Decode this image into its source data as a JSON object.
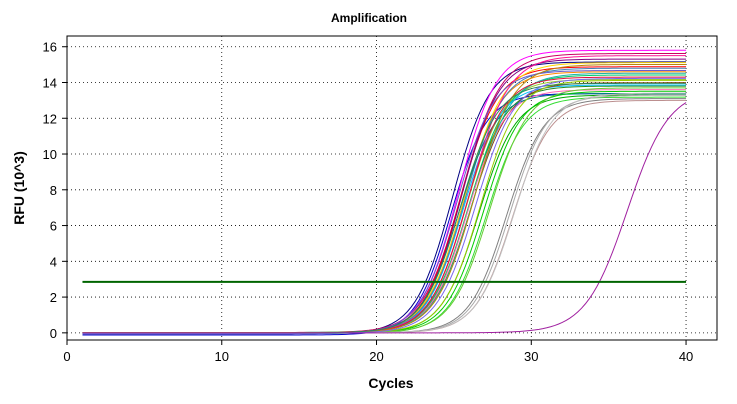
{
  "chart_data": {
    "type": "line",
    "title": "Amplification",
    "xlabel": "Cycles",
    "ylabel": "RFU (10^3)",
    "xlim": [
      0,
      42
    ],
    "ylim": [
      -0.4,
      16.6
    ],
    "x_ticks": [
      0,
      10,
      20,
      30,
      40
    ],
    "y_ticks": [
      0,
      2,
      4,
      6,
      8,
      10,
      12,
      14,
      16
    ],
    "grid": "dotted",
    "legend": "none",
    "threshold": {
      "y": 2.85,
      "color": "#006400"
    },
    "x_range": [
      1,
      40
    ],
    "curve_model": "logistic: baseline + plateau / (1 + exp(-(cycle - midpoint) / slope))",
    "series": [
      {
        "plateau": 13.5,
        "midpoint": 24.8,
        "slope": 1.15,
        "baseline": -0.12,
        "color": "#0000cc"
      },
      {
        "plateau": 15.2,
        "midpoint": 24.9,
        "slope": 1.2,
        "baseline": -0.05,
        "color": "#000080"
      },
      {
        "plateau": 15.8,
        "midpoint": 25.3,
        "slope": 1.2,
        "baseline": 0.0,
        "color": "#ff00ff"
      },
      {
        "plateau": 15.6,
        "midpoint": 25.5,
        "slope": 1.25,
        "baseline": 0.02,
        "color": "#cc0066"
      },
      {
        "plateau": 14.9,
        "midpoint": 25.4,
        "slope": 1.2,
        "baseline": -0.02,
        "color": "#ff0000"
      },
      {
        "plateau": 14.6,
        "midpoint": 25.6,
        "slope": 1.2,
        "baseline": 0.0,
        "color": "#ff8c00"
      },
      {
        "plateau": 15.1,
        "midpoint": 25.7,
        "slope": 1.25,
        "baseline": 0.01,
        "color": "#ffd700"
      },
      {
        "plateau": 14.2,
        "midpoint": 25.8,
        "slope": 1.2,
        "baseline": -0.03,
        "color": "#9acd32"
      },
      {
        "plateau": 13.8,
        "midpoint": 25.9,
        "slope": 1.2,
        "baseline": 0.0,
        "color": "#228b22"
      },
      {
        "plateau": 14.4,
        "midpoint": 26.0,
        "slope": 1.25,
        "baseline": 0.02,
        "color": "#00cc66"
      },
      {
        "plateau": 13.9,
        "midpoint": 25.6,
        "slope": 1.2,
        "baseline": -0.04,
        "color": "#00bfff"
      },
      {
        "plateau": 14.8,
        "midpoint": 25.7,
        "slope": 1.22,
        "baseline": 0.0,
        "color": "#4682b4"
      },
      {
        "plateau": 15.3,
        "midpoint": 25.5,
        "slope": 1.2,
        "baseline": 0.01,
        "color": "#800080"
      },
      {
        "plateau": 14.0,
        "midpoint": 26.1,
        "slope": 1.25,
        "baseline": -0.01,
        "color": "#8b4513"
      },
      {
        "plateau": 13.6,
        "midpoint": 25.9,
        "slope": 1.2,
        "baseline": 0.0,
        "color": "#ff69b4"
      },
      {
        "plateau": 14.5,
        "midpoint": 26.2,
        "slope": 1.25,
        "baseline": 0.02,
        "color": "#20b2aa"
      },
      {
        "plateau": 13.4,
        "midpoint": 25.3,
        "slope": 1.2,
        "baseline": -0.02,
        "color": "#008080"
      },
      {
        "plateau": 13.3,
        "midpoint": 26.6,
        "slope": 1.2,
        "baseline": 0.0,
        "color": "#00aa00"
      },
      {
        "plateau": 13.5,
        "midpoint": 26.9,
        "slope": 1.2,
        "baseline": 0.01,
        "color": "#00cc00"
      },
      {
        "plateau": 13.2,
        "midpoint": 27.1,
        "slope": 1.2,
        "baseline": -0.02,
        "color": "#33dd33"
      },
      {
        "plateau": 13.7,
        "midpoint": 27.3,
        "slope": 1.22,
        "baseline": 0.0,
        "color": "#66cc33"
      },
      {
        "plateau": 14.1,
        "midpoint": 26.7,
        "slope": 1.2,
        "baseline": 0.02,
        "color": "#99cc00"
      },
      {
        "plateau": 13.1,
        "midpoint": 28.4,
        "slope": 1.2,
        "baseline": 0.0,
        "color": "#808080"
      },
      {
        "plateau": 13.3,
        "midpoint": 28.6,
        "slope": 1.2,
        "baseline": -0.01,
        "color": "#a9a9a9"
      },
      {
        "plateau": 13.0,
        "midpoint": 28.8,
        "slope": 1.2,
        "baseline": 0.0,
        "color": "#bc8f8f"
      },
      {
        "plateau": 13.4,
        "midpoint": 28.9,
        "slope": 1.22,
        "baseline": 0.01,
        "color": "#c0c0c0"
      },
      {
        "plateau": 15.5,
        "midpoint": 26.0,
        "slope": 1.25,
        "baseline": 0.0,
        "color": "#ff1493"
      },
      {
        "plateau": 14.7,
        "midpoint": 25.2,
        "slope": 1.2,
        "baseline": -0.03,
        "color": "#6a5acd"
      },
      {
        "plateau": 14.3,
        "midpoint": 25.8,
        "slope": 1.2,
        "baseline": 0.0,
        "color": "#dc143c"
      },
      {
        "plateau": 15.0,
        "midpoint": 26.3,
        "slope": 1.25,
        "baseline": 0.01,
        "color": "#b8860b"
      },
      {
        "plateau": 13.95,
        "midpoint": 25.4,
        "slope": 1.2,
        "baseline": 0.0,
        "color": "#2e8b57"
      },
      {
        "plateau": 14.25,
        "midpoint": 26.4,
        "slope": 1.25,
        "baseline": -0.02,
        "color": "#7b68ee"
      },
      {
        "plateau": 13.65,
        "midpoint": 36.2,
        "slope": 1.35,
        "baseline": 0.0,
        "color": "#a020a0"
      }
    ]
  }
}
